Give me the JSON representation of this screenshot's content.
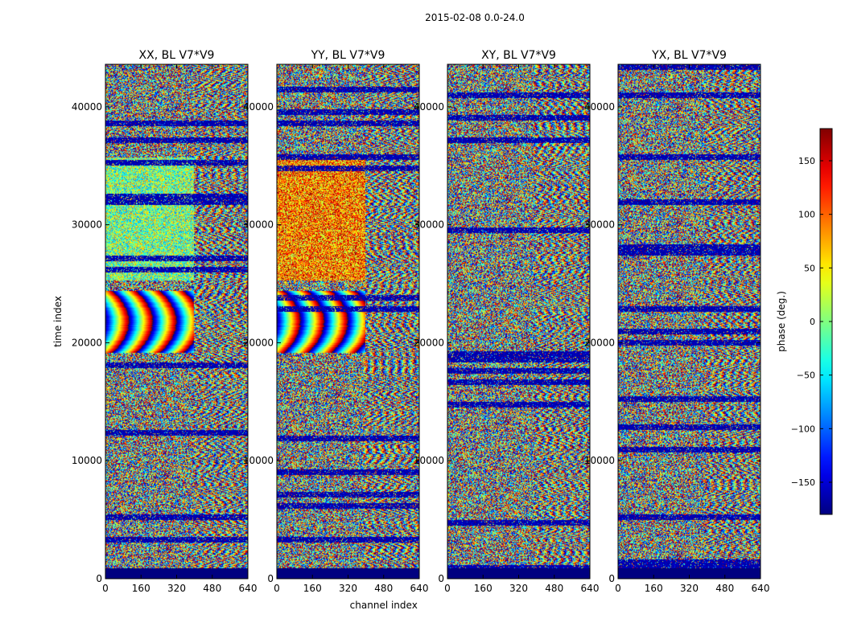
{
  "figure": {
    "suptitle": "2015-02-08 0.0-24.0",
    "xlabel": "channel index",
    "ylabel": "time index",
    "colorbar_label": "phase (deg.)",
    "colormap": "jet",
    "nan_color": "#00007f"
  },
  "chart_data": [
    {
      "type": "heatmap",
      "title": "XX, BL V7*V9",
      "xlim": [
        0,
        640
      ],
      "ylim": [
        0,
        43600
      ],
      "xticks": [
        0,
        160,
        320,
        480,
        640
      ],
      "yticks": [
        0,
        10000,
        20000,
        30000,
        40000
      ],
      "show_xlabel": false,
      "show_ylabel": true,
      "pattern": "xx"
    },
    {
      "type": "heatmap",
      "title": "YY, BL V7*V9",
      "xlim": [
        0,
        640
      ],
      "ylim": [
        0,
        43600
      ],
      "xticks": [
        0,
        160,
        320,
        480,
        640
      ],
      "yticks": [
        0,
        10000,
        20000,
        30000,
        40000
      ],
      "show_xlabel": true,
      "show_ylabel": false,
      "pattern": "yy"
    },
    {
      "type": "heatmap",
      "title": "XY, BL V7*V9",
      "xlim": [
        0,
        640
      ],
      "ylim": [
        0,
        43600
      ],
      "xticks": [
        0,
        160,
        320,
        480,
        640
      ],
      "yticks": [
        0,
        10000,
        20000,
        30000,
        40000
      ],
      "show_xlabel": false,
      "show_ylabel": false,
      "pattern": "cross"
    },
    {
      "type": "heatmap",
      "title": "YX, BL V7*V9",
      "xlim": [
        0,
        640
      ],
      "ylim": [
        0,
        43600
      ],
      "xticks": [
        0,
        160,
        320,
        480,
        640
      ],
      "yticks": [
        0,
        10000,
        20000,
        30000,
        40000
      ],
      "show_xlabel": false,
      "show_ylabel": false,
      "pattern": "cross"
    }
  ],
  "colorbar": {
    "range": [
      -180,
      180
    ],
    "ticks": [
      -150,
      -100,
      -50,
      0,
      50,
      100,
      150
    ]
  }
}
